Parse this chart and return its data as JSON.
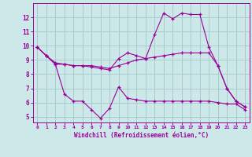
{
  "xlabel": "Windchill (Refroidissement éolien,°C)",
  "background_color": "#cce8e8",
  "grid_color": "#aacccc",
  "line_color": "#990099",
  "xlim": [
    -0.5,
    23.5
  ],
  "ylim": [
    4.6,
    13.0
  ],
  "yticks": [
    5,
    6,
    7,
    8,
    9,
    10,
    11,
    12
  ],
  "xticks": [
    0,
    1,
    2,
    3,
    4,
    5,
    6,
    7,
    8,
    9,
    10,
    11,
    12,
    13,
    14,
    15,
    16,
    17,
    18,
    19,
    20,
    21,
    22,
    23
  ],
  "line1_x": [
    0,
    1,
    2,
    3,
    4,
    5,
    6,
    7,
    8,
    9,
    10,
    11,
    12,
    13,
    14,
    15,
    16,
    17,
    18,
    19,
    20,
    21,
    22,
    23
  ],
  "line1_y": [
    9.9,
    9.3,
    8.7,
    8.7,
    8.6,
    8.6,
    8.5,
    8.4,
    8.3,
    9.1,
    9.5,
    9.3,
    9.1,
    10.8,
    12.3,
    11.9,
    12.3,
    12.2,
    12.2,
    9.9,
    8.6,
    7.0,
    6.1,
    5.7
  ],
  "line2_x": [
    0,
    1,
    2,
    3,
    4,
    5,
    6,
    7,
    8,
    9,
    10,
    11,
    12,
    13,
    14,
    15,
    16,
    17,
    18,
    19,
    20,
    21,
    22,
    23
  ],
  "line2_y": [
    9.9,
    9.3,
    8.8,
    8.7,
    8.6,
    8.6,
    8.6,
    8.5,
    8.4,
    8.6,
    8.8,
    9.0,
    9.1,
    9.2,
    9.3,
    9.4,
    9.5,
    9.5,
    9.5,
    9.5,
    8.6,
    7.0,
    6.1,
    5.7
  ],
  "line3_x": [
    0,
    1,
    2,
    3,
    4,
    5,
    6,
    7,
    8,
    9,
    10,
    11,
    12,
    13,
    14,
    15,
    16,
    17,
    18,
    19,
    20,
    21,
    22,
    23
  ],
  "line3_y": [
    9.9,
    9.3,
    8.7,
    6.6,
    6.1,
    6.1,
    5.5,
    4.9,
    5.6,
    7.1,
    6.3,
    6.2,
    6.1,
    6.1,
    6.1,
    6.1,
    6.1,
    6.1,
    6.1,
    6.1,
    6.0,
    5.9,
    5.9,
    5.5
  ]
}
